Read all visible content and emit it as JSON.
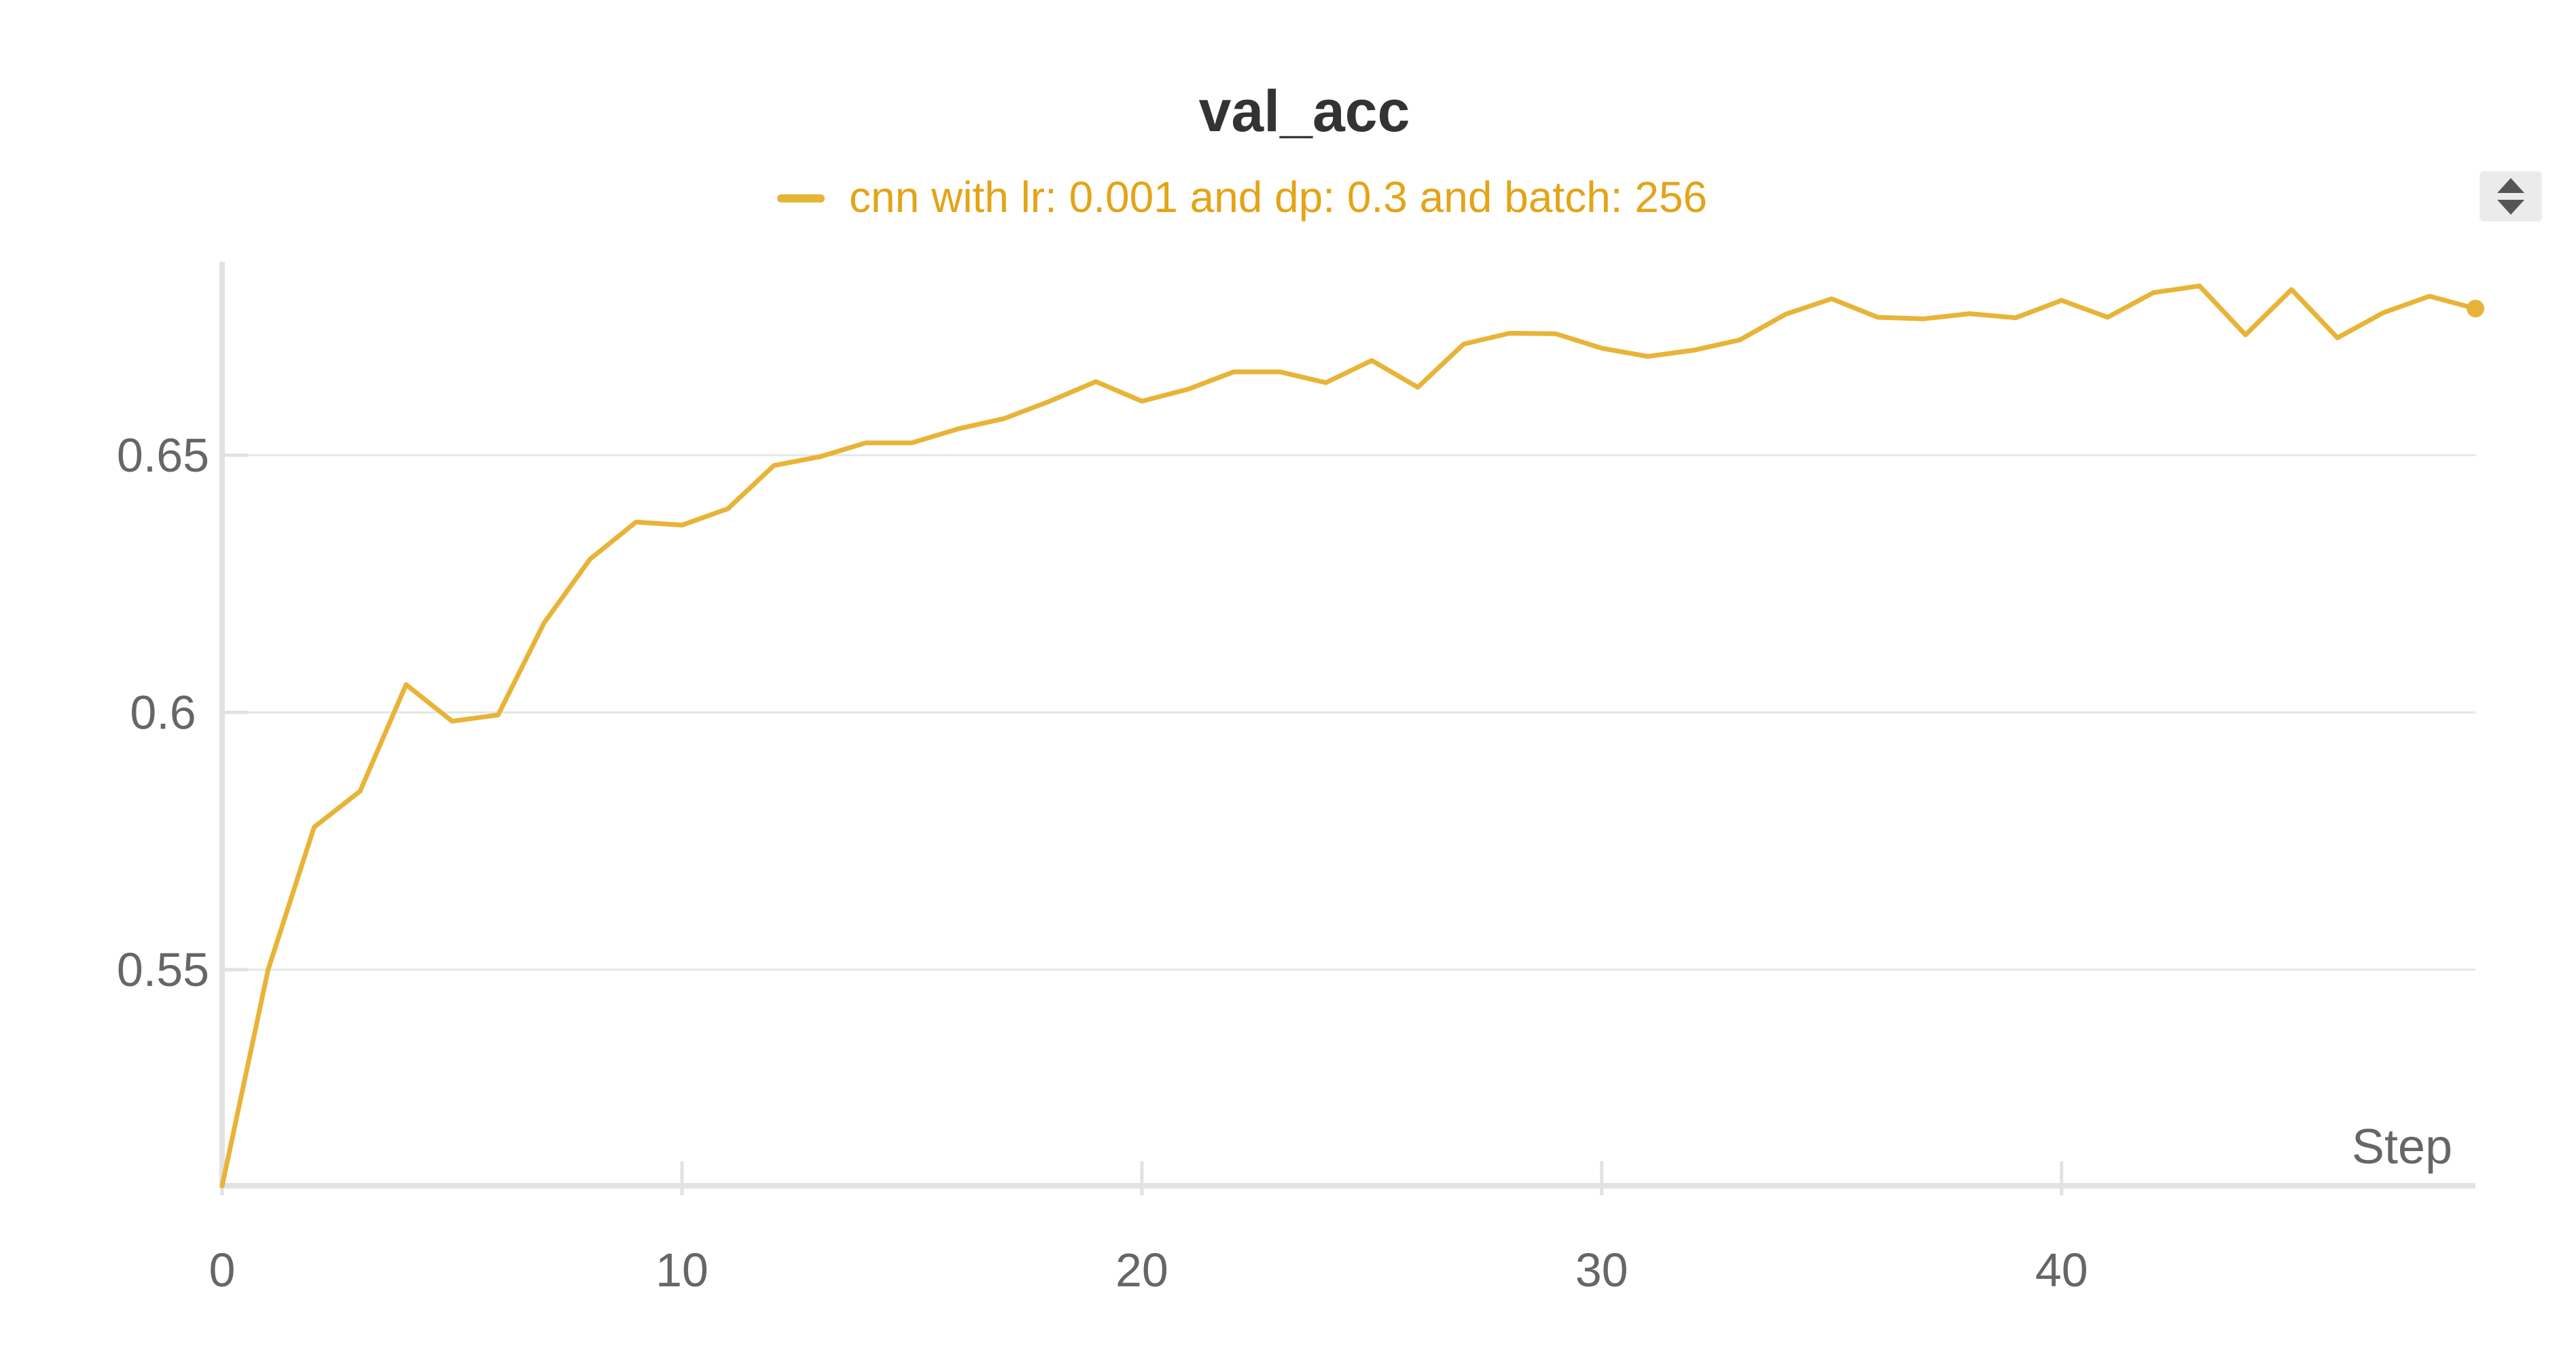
{
  "chart_data": {
    "type": "line",
    "title": "val_acc",
    "xlabel": "Step",
    "ylabel": "",
    "xlim": [
      0,
      49
    ],
    "ylim": [
      0.508,
      0.683
    ],
    "x_ticks": [
      0,
      10,
      20,
      30,
      40
    ],
    "x_tick_labels": [
      "0",
      "10",
      "20",
      "30",
      "40"
    ],
    "y_ticks": [
      0.55,
      0.6,
      0.65
    ],
    "y_tick_labels": [
      "0.55",
      "0.6",
      "0.65"
    ],
    "grid": true,
    "legend_position": "top-center",
    "series": [
      {
        "name": "cnn with lr: 0.001 and dp: 0.3 and batch: 256",
        "color": "#e8b437",
        "x": [
          0,
          1,
          2,
          3,
          4,
          5,
          6,
          7,
          8,
          9,
          10,
          11,
          12,
          13,
          14,
          15,
          16,
          17,
          18,
          19,
          20,
          21,
          22,
          23,
          24,
          25,
          26,
          27,
          28,
          29,
          30,
          31,
          32,
          33,
          34,
          35,
          36,
          37,
          38,
          39,
          40,
          41,
          42,
          43,
          44,
          45,
          46,
          47,
          48,
          49
        ],
        "values": [
          0.508,
          0.55,
          0.5777,
          0.5847,
          0.6054,
          0.5983,
          0.5995,
          0.6174,
          0.6298,
          0.637,
          0.6364,
          0.6396,
          0.648,
          0.6497,
          0.6524,
          0.6524,
          0.6551,
          0.6571,
          0.6605,
          0.6643,
          0.6605,
          0.6628,
          0.6662,
          0.6662,
          0.6641,
          0.6684,
          0.6632,
          0.6716,
          0.6737,
          0.6736,
          0.6708,
          0.6692,
          0.6704,
          0.6724,
          0.6774,
          0.6804,
          0.6768,
          0.6765,
          0.6775,
          0.6767,
          0.6801,
          0.6768,
          0.6816,
          0.6829,
          0.6734,
          0.6822,
          0.6728,
          0.6777,
          0.6809,
          0.6785
        ]
      }
    ]
  },
  "ui": {
    "sort_icon": "sort-up-down-icon"
  }
}
